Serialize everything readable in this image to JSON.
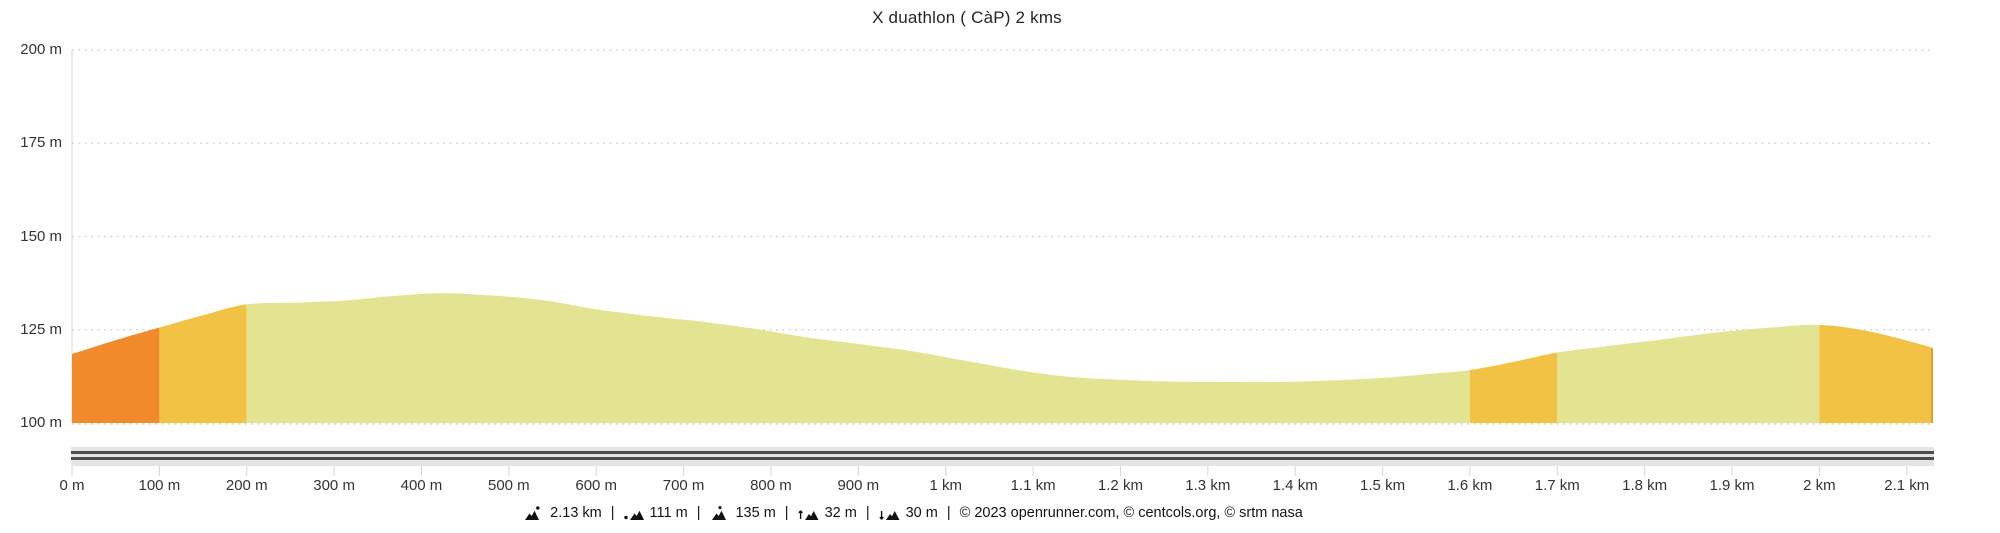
{
  "chart_data": {
    "type": "area",
    "title": "X duathlon ( CàP) 2 kms",
    "xlabel": "",
    "ylabel": "",
    "x_unit": "m",
    "y_unit": "m",
    "xlim": [
      0,
      2130
    ],
    "ylim": [
      100,
      200
    ],
    "grid": "dotted-horizontal",
    "legend": "none",
    "y_tick_values": [
      200,
      175,
      150,
      125,
      100
    ],
    "y_tick_labels": [
      "200 m",
      "175 m",
      "150 m",
      "125 m",
      "100 m"
    ],
    "x_tick_values": [
      0,
      100,
      200,
      300,
      400,
      500,
      600,
      700,
      800,
      900,
      1000,
      1100,
      1200,
      1300,
      1400,
      1500,
      1600,
      1700,
      1800,
      1900,
      2000,
      2100
    ],
    "x_tick_labels": [
      "0 m",
      "100 m",
      "200 m",
      "300 m",
      "400 m",
      "500 m",
      "600 m",
      "700 m",
      "800 m",
      "900 m",
      "1 km",
      "1.1 km",
      "1.2 km",
      "1.3 km",
      "1.4 km",
      "1.5 km",
      "1.6 km",
      "1.7 km",
      "1.8 km",
      "1.9 km",
      "2 km",
      "2.1 km"
    ],
    "profile_points": [
      [
        0,
        118.5
      ],
      [
        50,
        122.2
      ],
      [
        100,
        125.6
      ],
      [
        150,
        128.9
      ],
      [
        200,
        131.8
      ],
      [
        260,
        132.3
      ],
      [
        310,
        132.8
      ],
      [
        360,
        133.9
      ],
      [
        420,
        134.8
      ],
      [
        480,
        134.2
      ],
      [
        540,
        132.9
      ],
      [
        600,
        130.5
      ],
      [
        660,
        128.7
      ],
      [
        720,
        127.2
      ],
      [
        780,
        125.3
      ],
      [
        840,
        123.0
      ],
      [
        900,
        121.2
      ],
      [
        960,
        119.3
      ],
      [
        1020,
        116.8
      ],
      [
        1080,
        114.3
      ],
      [
        1140,
        112.4
      ],
      [
        1200,
        111.6
      ],
      [
        1260,
        111.1
      ],
      [
        1320,
        111.0
      ],
      [
        1380,
        111.0
      ],
      [
        1440,
        111.4
      ],
      [
        1500,
        112.1
      ],
      [
        1550,
        113.1
      ],
      [
        1600,
        114.2
      ],
      [
        1650,
        116.4
      ],
      [
        1700,
        118.9
      ],
      [
        1760,
        120.7
      ],
      [
        1820,
        122.4
      ],
      [
        1880,
        124.2
      ],
      [
        1940,
        125.5
      ],
      [
        2000,
        126.3
      ],
      [
        2060,
        124.4
      ],
      [
        2130,
        120.2
      ]
    ],
    "color_segments": [
      {
        "from": 0,
        "to": 100,
        "color": "#f08a2b"
      },
      {
        "from": 100,
        "to": 200,
        "color": "#f2c245"
      },
      {
        "from": 200,
        "to": 1600,
        "color": "#e3e492"
      },
      {
        "from": 1600,
        "to": 1700,
        "color": "#f2c245"
      },
      {
        "from": 1700,
        "to": 2000,
        "color": "#e3e492"
      },
      {
        "from": 2000,
        "to": 2130,
        "color": "#f2c245"
      }
    ]
  },
  "colors": {
    "steep_segment": "#f08a2b",
    "moderate_segment": "#f2c245",
    "easy_segment": "#e3e492",
    "axis_line": "#ccd6eb",
    "gridline": "#d6d6d6",
    "end_marker": "#e59b2d",
    "scrollbar_track": "#e4e4e4",
    "scrollbar_lines": "#4c4c4c",
    "label_text": "#333333"
  },
  "stats": {
    "divider": "|",
    "items": [
      {
        "icon": "distance-icon",
        "value": "2.13 km"
      },
      {
        "icon": "min-elevation-icon",
        "value": "111 m"
      },
      {
        "icon": "max-elevation-icon",
        "value": "135 m"
      },
      {
        "icon": "ascent-icon",
        "value": "32 m"
      },
      {
        "icon": "descent-icon",
        "value": "30 m"
      }
    ],
    "copyright": "© 2023 openrunner.com, © centcols.org, © srtm nasa"
  }
}
